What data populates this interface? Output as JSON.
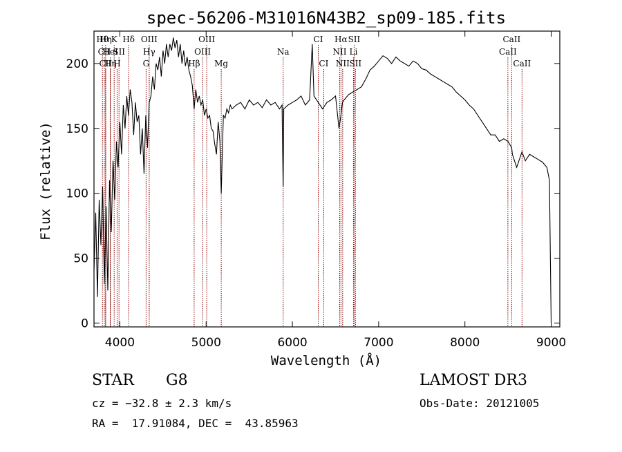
{
  "chart_data": {
    "type": "line",
    "title": "spec-56206-M31016N43B2_sp09-185.fits",
    "xlabel": "Wavelength (Å)",
    "ylabel": "Flux (relative)",
    "xlim": [
      3700,
      9100
    ],
    "ylim": [
      -3,
      225
    ],
    "x_ticks": [
      4000,
      5000,
      6000,
      7000,
      8000,
      9000
    ],
    "y_ticks": [
      0,
      50,
      100,
      150,
      200
    ],
    "grid": false,
    "series": [
      {
        "x": [
          3700,
          3720,
          3740,
          3760,
          3780,
          3800,
          3820,
          3840,
          3860,
          3880,
          3900,
          3920,
          3940,
          3960,
          3980,
          4000,
          4020,
          4040,
          4060,
          4080,
          4100,
          4120,
          4140,
          4160,
          4180,
          4200,
          4220,
          4240,
          4260,
          4280,
          4300,
          4320,
          4340,
          4360,
          4380,
          4400,
          4420,
          4440,
          4460,
          4480,
          4500,
          4520,
          4540,
          4560,
          4580,
          4600,
          4620,
          4640,
          4660,
          4680,
          4700,
          4720,
          4740,
          4760,
          4780,
          4800,
          4820,
          4840,
          4861,
          4880,
          4900,
          4920,
          4940,
          4960,
          4980,
          5000,
          5020,
          5040,
          5060,
          5080,
          5100,
          5120,
          5140,
          5160,
          5175,
          5200,
          5220,
          5240,
          5260,
          5280,
          5300,
          5350,
          5400,
          5450,
          5500,
          5550,
          5600,
          5650,
          5700,
          5750,
          5800,
          5850,
          5880,
          5893,
          5900,
          5950,
          6000,
          6050,
          6100,
          6150,
          6200,
          6230,
          6250,
          6300,
          6350,
          6400,
          6450,
          6500,
          6540,
          6563,
          6580,
          6600,
          6650,
          6700,
          6750,
          6800,
          6850,
          6900,
          6950,
          7000,
          7050,
          7100,
          7150,
          7200,
          7250,
          7300,
          7350,
          7400,
          7450,
          7500,
          7550,
          7600,
          7650,
          7700,
          7750,
          7800,
          7850,
          7900,
          7950,
          8000,
          8050,
          8100,
          8150,
          8200,
          8250,
          8300,
          8350,
          8400,
          8450,
          8500,
          8542,
          8550,
          8600,
          8662,
          8700,
          8750,
          8800,
          8850,
          8900,
          8950,
          8980,
          9000
        ],
        "y": [
          40,
          85,
          20,
          95,
          60,
          105,
          30,
          90,
          25,
          110,
          70,
          125,
          95,
          140,
          120,
          155,
          130,
          168,
          150,
          175,
          160,
          180,
          170,
          145,
          170,
          155,
          160,
          130,
          150,
          115,
          160,
          135,
          170,
          175,
          190,
          180,
          200,
          195,
          205,
          190,
          210,
          200,
          215,
          205,
          215,
          210,
          220,
          212,
          218,
          205,
          215,
          200,
          210,
          198,
          205,
          195,
          190,
          183,
          165,
          180,
          170,
          175,
          168,
          172,
          160,
          165,
          158,
          160,
          150,
          148,
          138,
          130,
          155,
          140,
          100,
          160,
          158,
          165,
          162,
          168,
          165,
          168,
          170,
          165,
          172,
          168,
          170,
          166,
          172,
          168,
          170,
          165,
          168,
          105,
          165,
          168,
          170,
          172,
          175,
          168,
          172,
          215,
          175,
          170,
          165,
          170,
          172,
          175,
          150,
          160,
          170,
          172,
          176,
          178,
          180,
          182,
          188,
          195,
          198,
          202,
          206,
          204,
          200,
          205,
          202,
          200,
          198,
          202,
          200,
          196,
          195,
          192,
          190,
          188,
          186,
          184,
          182,
          178,
          175,
          172,
          168,
          165,
          160,
          155,
          150,
          145,
          145,
          140,
          142,
          140,
          135,
          130,
          120,
          132,
          125,
          130,
          128,
          126,
          124,
          120,
          110,
          0
        ]
      }
    ],
    "spectral_lines": [
      {
        "label": "Hθ",
        "x": 3798,
        "row": 0
      },
      {
        "label": "CII",
        "x": 3820,
        "row": 1
      },
      {
        "label": "CII",
        "x": 3835,
        "row": 2
      },
      {
        "label": "Hη",
        "x": 3835,
        "row": 0
      },
      {
        "label": "HeI",
        "x": 3889,
        "row": 1
      },
      {
        "label": "Hη",
        "x": 3889,
        "row": 2
      },
      {
        "label": "K",
        "x": 3934,
        "row": 0
      },
      {
        "label": "H",
        "x": 3968,
        "row": 2
      },
      {
        "label": "SII",
        "x": 3990,
        "row": 1
      },
      {
        "label": "Hδ",
        "x": 4102,
        "row": 0
      },
      {
        "label": "OIII",
        "x": 4340,
        "row": 0
      },
      {
        "label": "Hγ",
        "x": 4340,
        "row": 1
      },
      {
        "label": "G",
        "x": 4304,
        "row": 2
      },
      {
        "label": "Hβ",
        "x": 4861,
        "row": 2
      },
      {
        "label": "OIII",
        "x": 5007,
        "row": 0
      },
      {
        "label": "OIII",
        "x": 4959,
        "row": 1
      },
      {
        "label": "Mg",
        "x": 5175,
        "row": 2
      },
      {
        "label": "Na",
        "x": 5893,
        "row": 1
      },
      {
        "label": "CI",
        "x": 6300,
        "row": 0
      },
      {
        "label": "CI",
        "x": 6363,
        "row": 2
      },
      {
        "label": "Hα",
        "x": 6563,
        "row": 0
      },
      {
        "label": "SII",
        "x": 6716,
        "row": 0
      },
      {
        "label": "NII",
        "x": 6548,
        "row": 1
      },
      {
        "label": "Li",
        "x": 6708,
        "row": 1
      },
      {
        "label": "NII",
        "x": 6583,
        "row": 2
      },
      {
        "label": "SII",
        "x": 6731,
        "row": 2
      },
      {
        "label": "CaII",
        "x": 8542,
        "row": 0
      },
      {
        "label": "CaII",
        "x": 8498,
        "row": 1
      },
      {
        "label": "CaII",
        "x": 8662,
        "row": 2
      }
    ],
    "line_color": "#8b0000"
  },
  "footer": {
    "object_class": "STAR",
    "subclass": "G8",
    "cz": "cz = −32.8 ± 2.3 km/s",
    "coords": "RA =  17.91084, DEC =  43.85963",
    "survey": "LAMOST DR3",
    "obs_date": "Obs-Date: 20121005"
  }
}
